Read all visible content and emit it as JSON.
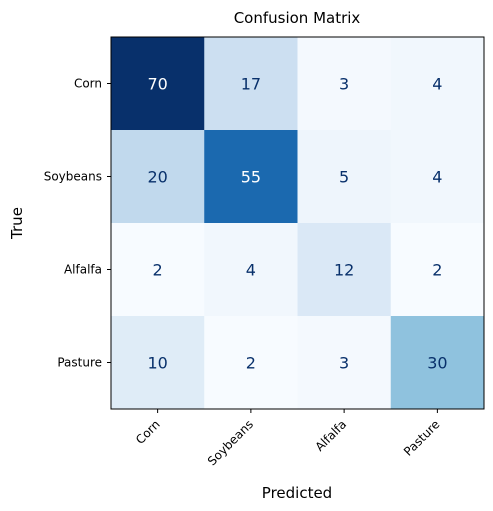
{
  "chart_data": {
    "type": "heatmap",
    "title": "Confusion Matrix",
    "xlabel": "Predicted",
    "ylabel": "True",
    "x_categories": [
      "Corn",
      "Soybeans",
      "Alfalfa",
      "Pasture"
    ],
    "y_categories": [
      "Corn",
      "Soybeans",
      "Alfalfa",
      "Pasture"
    ],
    "values": [
      [
        70,
        17,
        3,
        4
      ],
      [
        20,
        55,
        5,
        4
      ],
      [
        2,
        4,
        12,
        2
      ],
      [
        10,
        2,
        3,
        30
      ]
    ],
    "colormap": "Blues",
    "value_range": [
      2,
      70
    ],
    "colors": {
      "light_text": "#ffffff",
      "dark_text": "#08306b"
    }
  }
}
